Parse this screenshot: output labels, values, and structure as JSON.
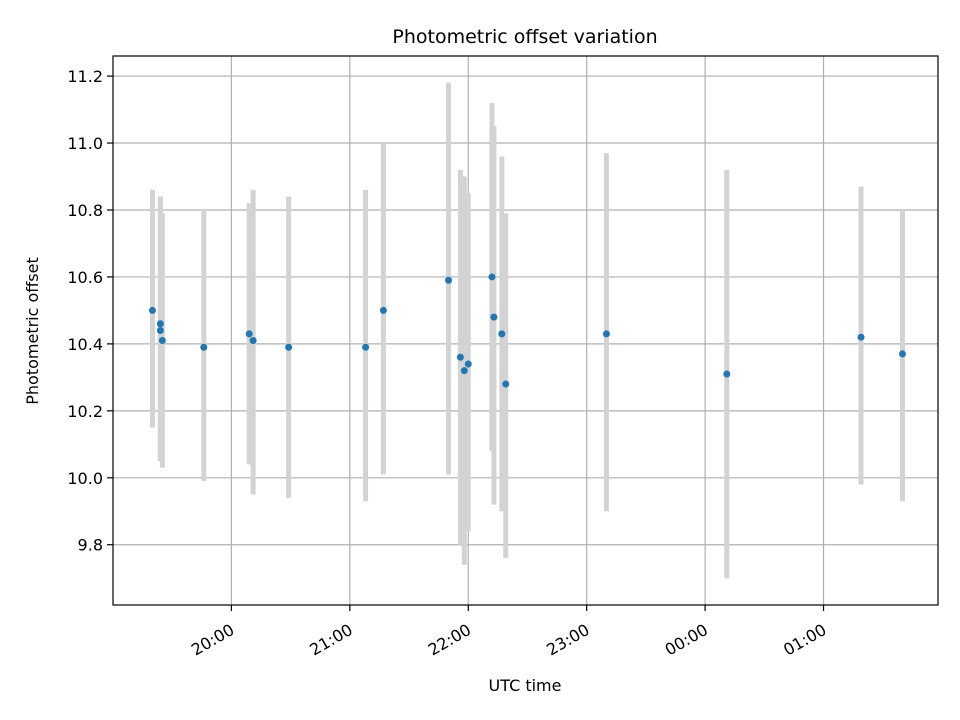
{
  "chart_data": {
    "type": "scatter",
    "title": "Photometric offset variation",
    "xlabel": "UTC time",
    "ylabel": "Photometric offset",
    "x_unit": "clock time (HH:MM, 19:00 onward, wrapping past midnight)",
    "xlim": [
      "19:00",
      "01:58"
    ],
    "ylim": [
      9.62,
      11.26
    ],
    "grid": true,
    "xticks": [
      "20:00",
      "21:00",
      "22:00",
      "23:00",
      "00:00",
      "01:00"
    ],
    "yticks": [
      "9.8",
      "10.0",
      "10.2",
      "10.4",
      "10.6",
      "10.8",
      "11.0",
      "11.2"
    ],
    "colors": {
      "points": "#1f77b4",
      "errorbars": "#d3d3d3",
      "grid": "#b0b0b0"
    },
    "points": [
      {
        "x": "19:20",
        "y": 10.5,
        "ylow": 10.15,
        "yhigh": 10.86
      },
      {
        "x": "19:24",
        "y": 10.46,
        "ylow": 10.05,
        "yhigh": 10.84
      },
      {
        "x": "19:24",
        "y": 10.44,
        "ylow": 10.05,
        "yhigh": 10.84
      },
      {
        "x": "19:25",
        "y": 10.41,
        "ylow": 10.03,
        "yhigh": 10.79
      },
      {
        "x": "19:46",
        "y": 10.39,
        "ylow": 9.99,
        "yhigh": 10.8
      },
      {
        "x": "20:09",
        "y": 10.43,
        "ylow": 10.04,
        "yhigh": 10.82
      },
      {
        "x": "20:11",
        "y": 10.41,
        "ylow": 9.95,
        "yhigh": 10.86
      },
      {
        "x": "20:29",
        "y": 10.39,
        "ylow": 9.94,
        "yhigh": 10.84
      },
      {
        "x": "21:08",
        "y": 10.39,
        "ylow": 9.93,
        "yhigh": 10.86
      },
      {
        "x": "21:17",
        "y": 10.5,
        "ylow": 10.01,
        "yhigh": 11.0
      },
      {
        "x": "21:50",
        "y": 10.59,
        "ylow": 10.01,
        "yhigh": 11.18
      },
      {
        "x": "21:56",
        "y": 10.36,
        "ylow": 9.8,
        "yhigh": 10.92
      },
      {
        "x": "21:58",
        "y": 10.32,
        "ylow": 9.74,
        "yhigh": 10.9
      },
      {
        "x": "22:00",
        "y": 10.34,
        "ylow": 9.84,
        "yhigh": 10.85
      },
      {
        "x": "22:12",
        "y": 10.6,
        "ylow": 10.08,
        "yhigh": 11.12
      },
      {
        "x": "22:13",
        "y": 10.48,
        "ylow": 9.92,
        "yhigh": 11.05
      },
      {
        "x": "22:17",
        "y": 10.43,
        "ylow": 9.9,
        "yhigh": 10.96
      },
      {
        "x": "22:19",
        "y": 10.28,
        "ylow": 9.76,
        "yhigh": 10.79
      },
      {
        "x": "23:10",
        "y": 10.43,
        "ylow": 9.9,
        "yhigh": 10.97
      },
      {
        "x": "00:11",
        "y": 10.31,
        "ylow": 9.7,
        "yhigh": 10.92
      },
      {
        "x": "01:19",
        "y": 10.42,
        "ylow": 9.98,
        "yhigh": 10.87
      },
      {
        "x": "01:40",
        "y": 10.37,
        "ylow": 9.93,
        "yhigh": 10.8
      }
    ]
  }
}
